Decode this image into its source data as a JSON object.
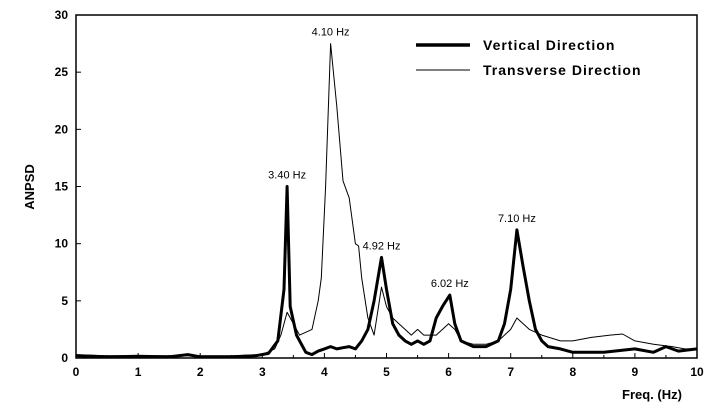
{
  "chart_data": {
    "type": "line",
    "title": "",
    "xlabel": "Freq. (Hz)",
    "ylabel": "ANPSD",
    "xlim": [
      0,
      10
    ],
    "ylim": [
      0,
      30
    ],
    "xticks": [
      "0",
      "1",
      "2",
      "3",
      "4",
      "5",
      "6",
      "7",
      "8",
      "9",
      "10"
    ],
    "yticks": [
      "0",
      "5",
      "10",
      "15",
      "20",
      "25",
      "30"
    ],
    "grid": false,
    "legend_position": "top-right",
    "series": [
      {
        "name": "Vertical Direction",
        "style": "thick",
        "points": [
          [
            0,
            0.2
          ],
          [
            0.5,
            0.1
          ],
          [
            1,
            0.15
          ],
          [
            1.5,
            0.1
          ],
          [
            1.8,
            0.3
          ],
          [
            2,
            0.1
          ],
          [
            2.5,
            0.1
          ],
          [
            2.9,
            0.2
          ],
          [
            3.1,
            0.4
          ],
          [
            3.25,
            1.5
          ],
          [
            3.35,
            6
          ],
          [
            3.4,
            15
          ],
          [
            3.45,
            4.5
          ],
          [
            3.55,
            2
          ],
          [
            3.7,
            0.5
          ],
          [
            3.8,
            0.3
          ],
          [
            3.9,
            0.6
          ],
          [
            4.0,
            0.8
          ],
          [
            4.1,
            1.0
          ],
          [
            4.2,
            0.8
          ],
          [
            4.3,
            0.9
          ],
          [
            4.4,
            1.0
          ],
          [
            4.5,
            0.8
          ],
          [
            4.6,
            1.5
          ],
          [
            4.7,
            2.5
          ],
          [
            4.8,
            5
          ],
          [
            4.92,
            8.8
          ],
          [
            5.0,
            6
          ],
          [
            5.1,
            3
          ],
          [
            5.2,
            2
          ],
          [
            5.3,
            1.5
          ],
          [
            5.4,
            1.2
          ],
          [
            5.5,
            1.5
          ],
          [
            5.6,
            1.2
          ],
          [
            5.7,
            1.5
          ],
          [
            5.8,
            3.5
          ],
          [
            5.9,
            4.5
          ],
          [
            6.02,
            5.5
          ],
          [
            6.1,
            3
          ],
          [
            6.2,
            1.5
          ],
          [
            6.4,
            1.0
          ],
          [
            6.6,
            1.0
          ],
          [
            6.8,
            1.5
          ],
          [
            6.9,
            3
          ],
          [
            7.0,
            6
          ],
          [
            7.1,
            11.2
          ],
          [
            7.2,
            8
          ],
          [
            7.3,
            5
          ],
          [
            7.4,
            2.5
          ],
          [
            7.5,
            1.5
          ],
          [
            7.6,
            1.0
          ],
          [
            7.8,
            0.8
          ],
          [
            8.0,
            0.5
          ],
          [
            8.5,
            0.5
          ],
          [
            9.0,
            0.8
          ],
          [
            9.3,
            0.5
          ],
          [
            9.5,
            1.0
          ],
          [
            9.7,
            0.6
          ],
          [
            10,
            0.8
          ]
        ]
      },
      {
        "name": "Transverse Direction",
        "style": "thin",
        "points": [
          [
            0,
            0.3
          ],
          [
            0.5,
            0.2
          ],
          [
            1,
            0.2
          ],
          [
            1.5,
            0.2
          ],
          [
            2,
            0.2
          ],
          [
            2.5,
            0.2
          ],
          [
            3,
            0.3
          ],
          [
            3.2,
            0.8
          ],
          [
            3.3,
            2
          ],
          [
            3.4,
            4
          ],
          [
            3.5,
            3
          ],
          [
            3.6,
            2
          ],
          [
            3.8,
            2.5
          ],
          [
            3.9,
            5
          ],
          [
            3.95,
            7
          ],
          [
            4.02,
            15
          ],
          [
            4.1,
            27.5
          ],
          [
            4.2,
            22
          ],
          [
            4.3,
            15.5
          ],
          [
            4.4,
            14
          ],
          [
            4.5,
            10
          ],
          [
            4.55,
            9.8
          ],
          [
            4.6,
            7
          ],
          [
            4.7,
            3.5
          ],
          [
            4.8,
            2
          ],
          [
            4.92,
            6.2
          ],
          [
            5.0,
            4.5
          ],
          [
            5.1,
            3.5
          ],
          [
            5.2,
            3
          ],
          [
            5.3,
            2.5
          ],
          [
            5.4,
            2
          ],
          [
            5.5,
            2.5
          ],
          [
            5.6,
            2
          ],
          [
            5.8,
            2
          ],
          [
            6.0,
            3
          ],
          [
            6.1,
            2.5
          ],
          [
            6.2,
            1.5
          ],
          [
            6.4,
            1.2
          ],
          [
            6.6,
            1.2
          ],
          [
            6.8,
            1.5
          ],
          [
            7.0,
            2.5
          ],
          [
            7.1,
            3.5
          ],
          [
            7.3,
            2.5
          ],
          [
            7.5,
            2
          ],
          [
            7.8,
            1.5
          ],
          [
            8.0,
            1.5
          ],
          [
            8.3,
            1.8
          ],
          [
            8.6,
            2
          ],
          [
            8.8,
            2.1
          ],
          [
            9.0,
            1.5
          ],
          [
            9.3,
            1.2
          ],
          [
            9.6,
            1.0
          ],
          [
            9.8,
            0.8
          ],
          [
            10,
            0.8
          ]
        ]
      }
    ],
    "annotations": [
      {
        "text": "3.40 Hz",
        "x": 3.4,
        "y": 15
      },
      {
        "text": "4.10 Hz",
        "x": 4.1,
        "y": 27.5
      },
      {
        "text": "4.92 Hz",
        "x": 4.92,
        "y": 8.8
      },
      {
        "text": "6.02 Hz",
        "x": 6.02,
        "y": 5.5
      },
      {
        "text": "7.10 Hz",
        "x": 7.1,
        "y": 11.2
      }
    ]
  }
}
